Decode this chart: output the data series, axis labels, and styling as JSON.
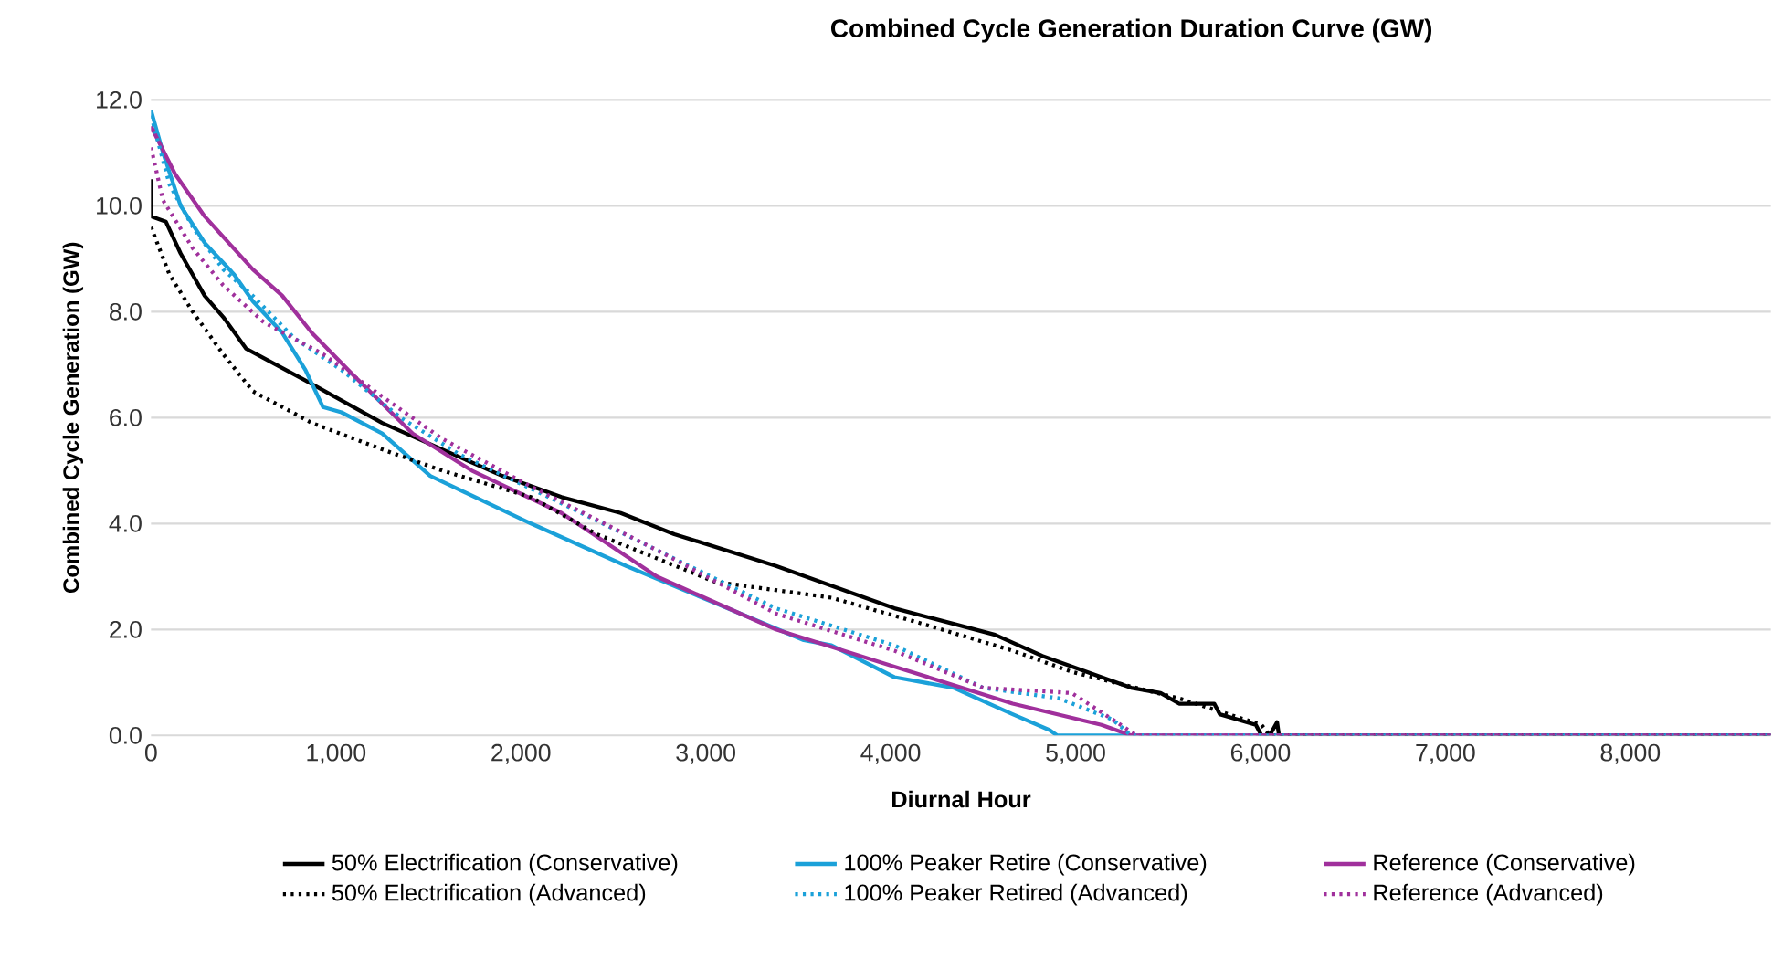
{
  "chart_data": {
    "type": "line",
    "title": "Combined Cycle Generation Duration Curve (GW)",
    "xlabel": "Diurnal Hour",
    "ylabel": "Combined Cycle Generation (GW)",
    "xlim": [
      0,
      8760
    ],
    "ylim": [
      0,
      12
    ],
    "xticks": [
      0,
      {
        "value": 1000,
        "label": "1,000"
      },
      {
        "value": 2000,
        "label": "2,000"
      },
      {
        "value": 3000,
        "label": "3,000"
      },
      {
        "value": 4000,
        "label": "4,000"
      },
      {
        "value": 5000,
        "label": "5,000"
      },
      {
        "value": 6000,
        "label": "6,000"
      },
      {
        "value": 7000,
        "label": "7,000"
      },
      {
        "value": 8000,
        "label": "8,000"
      }
    ],
    "yticks": [
      {
        "value": 0,
        "label": "0.0"
      },
      {
        "value": 2,
        "label": "2.0"
      },
      {
        "value": 4,
        "label": "4.0"
      },
      {
        "value": 6,
        "label": "6.0"
      },
      {
        "value": 8,
        "label": "8.0"
      },
      {
        "value": 10,
        "label": "10.0"
      },
      {
        "value": 12,
        "label": "12.0"
      }
    ],
    "grid": "y",
    "legend": "bottom",
    "marker": "none",
    "series": [
      {
        "name": "50% Electrification (Conservative)",
        "color": "#000000",
        "line_style": "solid",
        "x": [
          0,
          0,
          80,
          160,
          290,
          390,
          515,
          835,
          1250,
          1575,
          1900,
          2220,
          2540,
          2830,
          3380,
          4020,
          4565,
          4820,
          5140,
          5300,
          5460,
          5560,
          5750,
          5780,
          5975,
          6005,
          6050,
          6090,
          6100,
          8760
        ],
        "values": [
          10.5,
          9.8,
          9.7,
          9.1,
          8.3,
          7.9,
          7.3,
          6.7,
          5.9,
          5.4,
          4.9,
          4.5,
          4.2,
          3.8,
          3.2,
          2.4,
          1.9,
          1.5,
          1.1,
          0.9,
          0.8,
          0.6,
          0.6,
          0.4,
          0.2,
          0.0,
          0.0,
          0.25,
          0.0,
          0.0
        ]
      },
      {
        "name": "100% Peaker Retire (Conservative)",
        "color": "#1ba1d9",
        "line_style": "solid",
        "x": [
          0,
          65,
          160,
          290,
          450,
          550,
          710,
          835,
          930,
          1030,
          1250,
          1510,
          2055,
          2570,
          3050,
          3530,
          3680,
          4020,
          4340,
          4660,
          4860,
          4900,
          8760
        ],
        "values": [
          11.8,
          11.0,
          10.0,
          9.3,
          8.7,
          8.2,
          7.6,
          6.9,
          6.2,
          6.1,
          5.7,
          4.9,
          4.0,
          3.2,
          2.5,
          1.8,
          1.7,
          1.1,
          0.9,
          0.4,
          0.1,
          0.0,
          0.0
        ]
      },
      {
        "name": "Reference (Conservative)",
        "color": "#a0309c",
        "line_style": "solid",
        "x": [
          0,
          130,
          290,
          550,
          710,
          870,
          1095,
          1415,
          1735,
          2220,
          2735,
          3380,
          4020,
          4660,
          5140,
          5300,
          8760
        ],
        "values": [
          11.5,
          10.6,
          9.8,
          8.8,
          8.3,
          7.6,
          6.8,
          5.7,
          5.0,
          4.2,
          3.0,
          2.0,
          1.3,
          0.6,
          0.2,
          0.0,
          0.0
        ]
      },
      {
        "name": "50% Electrification (Advanced)",
        "color": "#000000",
        "line_style": "dotted",
        "x": [
          0,
          100,
          225,
          390,
          550,
          870,
          1250,
          1575,
          2055,
          2410,
          3050,
          3680,
          4180,
          4660,
          4980,
          5560,
          6005,
          6050,
          8760
        ],
        "values": [
          9.6,
          8.7,
          8.0,
          7.2,
          6.5,
          5.9,
          5.4,
          5.0,
          4.5,
          3.8,
          2.9,
          2.6,
          2.1,
          1.6,
          1.2,
          0.7,
          0.2,
          0.0,
          0.0
        ]
      },
      {
        "name": "100% Peaker Retired (Advanced)",
        "color": "#1ba1d9",
        "line_style": "dotted",
        "x": [
          0,
          100,
          225,
          390,
          550,
          775,
          1030,
          1350,
          1670,
          2150,
          2735,
          3380,
          4020,
          4500,
          4910,
          5200,
          5300,
          8760
        ],
        "values": [
          11.7,
          10.4,
          9.6,
          8.8,
          8.3,
          7.5,
          6.9,
          6.0,
          5.3,
          4.5,
          3.5,
          2.4,
          1.7,
          0.9,
          0.7,
          0.3,
          0.0,
          0.0
        ]
      },
      {
        "name": "Reference (Advanced)",
        "color": "#a0309c",
        "line_style": "dotted",
        "x": [
          0,
          65,
          225,
          390,
          610,
          930,
          1250,
          1575,
          2055,
          2735,
          3380,
          4020,
          4500,
          4980,
          5200,
          5330,
          8760
        ],
        "values": [
          11.1,
          10.1,
          9.2,
          8.5,
          7.8,
          7.2,
          6.4,
          5.6,
          4.7,
          3.5,
          2.3,
          1.6,
          0.9,
          0.8,
          0.3,
          0.0,
          0.0
        ]
      }
    ]
  }
}
